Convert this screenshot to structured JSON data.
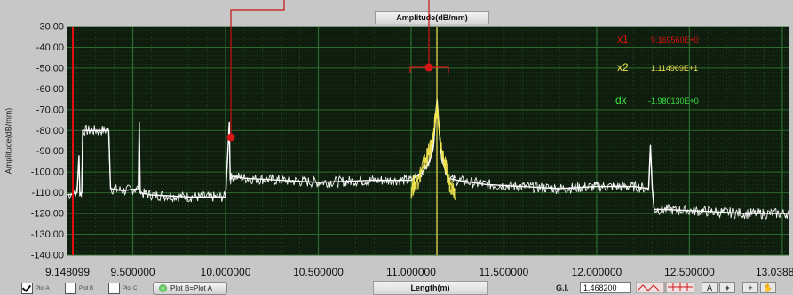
{
  "graph": {
    "title": "Amplitude(dB/mm)",
    "ylabel": "Amplitude(dB/mm)",
    "xlabel": "Length(m)"
  },
  "cursors": {
    "x1_label": "x1",
    "x1_value": "9.169560E+0",
    "x2_label": "x2",
    "x2_value": "1.114969E+1",
    "dx_label": "dx",
    "dx_value": "-1.980130E+0"
  },
  "legend": {
    "items": [
      {
        "label": "Plot A",
        "checked": true
      },
      {
        "label": "Plot B",
        "checked": false
      },
      {
        "label": "Plot C",
        "checked": false
      }
    ],
    "toggle_label": "Plot B=Plot A"
  },
  "controls": {
    "gi_label": "G.I.",
    "gi_value": "1.468200",
    "tool_a": "A",
    "tool_cross": "+",
    "tool_zoom": "+",
    "tool_hand": "✋"
  },
  "colors": {
    "plot_bg": "#0f1d0f",
    "grid": "#2e6b2e",
    "trace_a": "#ffffff",
    "trace_b": "#f2e650",
    "cursor_1": "#e01010",
    "cursor_2": "#f2e650",
    "dx_text": "#3be03b"
  },
  "chart_data": {
    "type": "line",
    "title": "Amplitude(dB/mm)",
    "xlabel": "Length(m)",
    "ylabel": "Amplitude(dB/mm)",
    "xlim": [
      9.148099,
      13.0388
    ],
    "ylim": [
      -140,
      -30
    ],
    "y_ticks": [
      "-30.00",
      "-40.00",
      "-50.00",
      "-60.00",
      "-70.00",
      "-80.00",
      "-90.00",
      "-100.00",
      "-110.00",
      "-120.00",
      "-130.00",
      "-140.00"
    ],
    "x_ticks": [
      {
        "value": 9.148099,
        "label": "9.148099"
      },
      {
        "value": 9.5,
        "label": "9.500000"
      },
      {
        "value": 10.0,
        "label": "10.000000"
      },
      {
        "value": 10.5,
        "label": "10.500000"
      },
      {
        "value": 11.0,
        "label": "11.000000"
      },
      {
        "value": 11.5,
        "label": "11.500000"
      },
      {
        "value": 12.0,
        "label": "12.000000"
      },
      {
        "value": 12.5,
        "label": "12.500000"
      },
      {
        "value": 13.0388,
        "label": "13.0388"
      }
    ],
    "grid": true,
    "series": [
      {
        "color": "#ffffff",
        "x": [
          9.15,
          9.2,
          9.21,
          9.215,
          9.225,
          9.23,
          9.25,
          9.28,
          9.3,
          9.33,
          9.35,
          9.37,
          9.38,
          9.45,
          9.53,
          9.535,
          9.54,
          9.6,
          9.8,
          10.0,
          10.02,
          10.025,
          10.03,
          10.04,
          10.1,
          10.3,
          10.5,
          10.8,
          11.0,
          11.06,
          11.1,
          11.12,
          11.14,
          11.16,
          11.18,
          11.2,
          11.25,
          11.4,
          11.6,
          11.8,
          12.0,
          12.2,
          12.28,
          12.29,
          12.3,
          12.31,
          12.35,
          12.6,
          12.8,
          13.0388
        ],
        "y": [
          -111,
          -110,
          -92,
          -111,
          -110,
          -80,
          -80,
          -80,
          -80,
          -80,
          -80,
          -80,
          -108,
          -109,
          -108,
          -76,
          -110,
          -111,
          -112,
          -112,
          -76,
          -104,
          -103,
          -102,
          -103,
          -104,
          -105,
          -104,
          -104,
          -100,
          -95,
          -87,
          -65,
          -90,
          -98,
          -103,
          -104,
          -106,
          -107,
          -108,
          -107,
          -107,
          -108,
          -87,
          -108,
          -118,
          -118,
          -119,
          -120,
          -120
        ]
      },
      {
        "color": "#f2e650",
        "x": [
          11.0,
          11.04,
          11.07,
          11.1,
          11.12,
          11.14,
          11.16,
          11.18,
          11.2,
          11.24
        ],
        "y": [
          -108,
          -103,
          -96,
          -90,
          -83,
          -68,
          -88,
          -95,
          -104,
          -109
        ]
      }
    ]
  }
}
